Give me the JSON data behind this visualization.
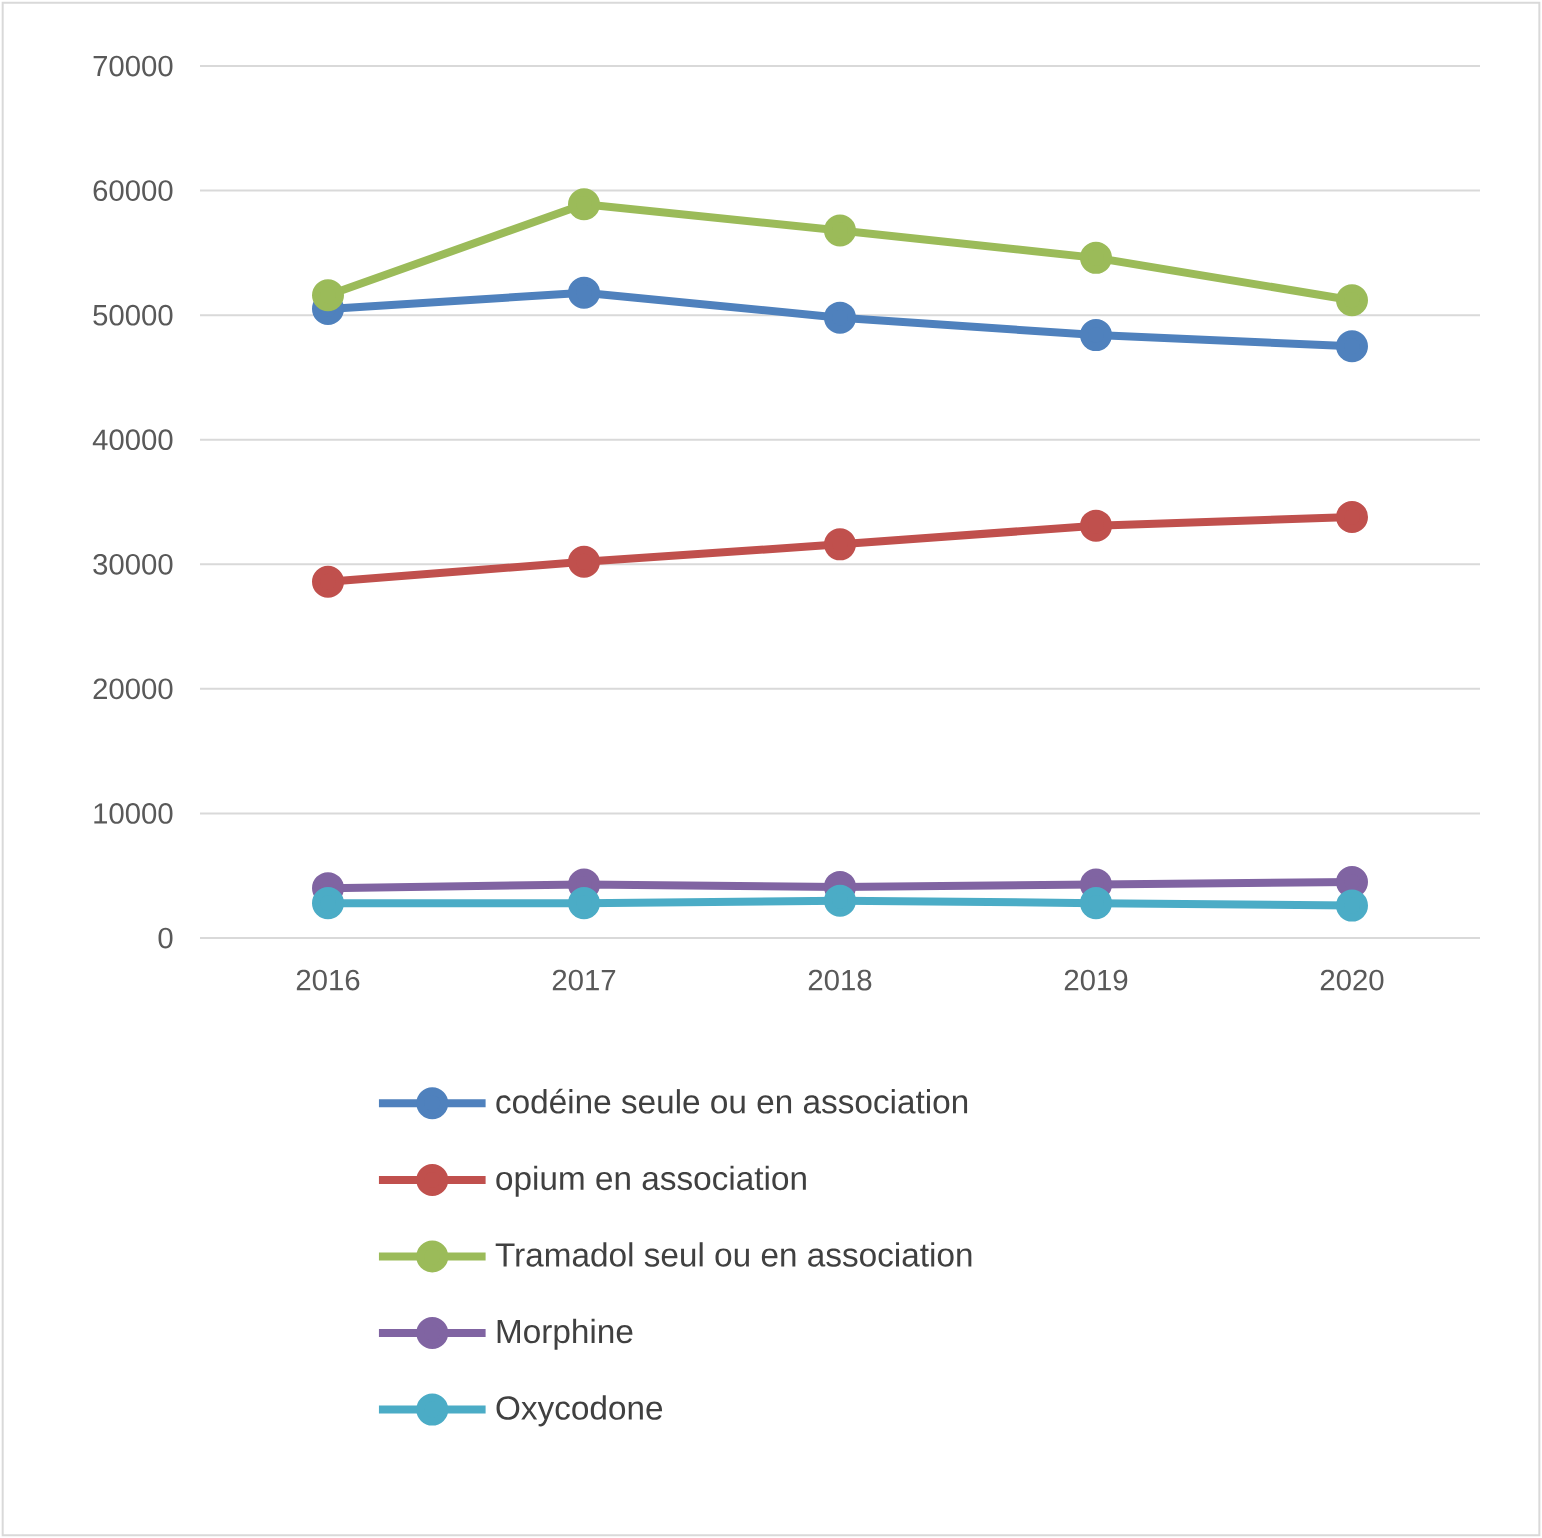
{
  "chart_data": {
    "type": "line",
    "categories": [
      "2016",
      "2017",
      "2018",
      "2019",
      "2020"
    ],
    "series": [
      {
        "name": "codéine seule ou en association",
        "color": "#4f81bd",
        "values": [
          50500,
          51800,
          49800,
          48400,
          47500
        ]
      },
      {
        "name": "opium en association",
        "color": "#c0504d",
        "values": [
          28600,
          30200,
          31600,
          33100,
          33800
        ]
      },
      {
        "name": "Tramadol seul ou en association",
        "color": "#9bbb59",
        "values": [
          51600,
          58900,
          56800,
          54600,
          51200
        ]
      },
      {
        "name": "Morphine",
        "color": "#8064a2",
        "values": [
          4000,
          4300,
          4100,
          4300,
          4500
        ]
      },
      {
        "name": "Oxycodone",
        "color": "#4bacc6",
        "values": [
          2800,
          2800,
          3000,
          2800,
          2600
        ]
      }
    ],
    "ylim": [
      0,
      70000
    ],
    "yticks": [
      0,
      10000,
      20000,
      30000,
      40000,
      50000,
      60000,
      70000
    ],
    "grid": "y",
    "legend": "bottom",
    "marker": "circle",
    "line_style": "solid"
  }
}
